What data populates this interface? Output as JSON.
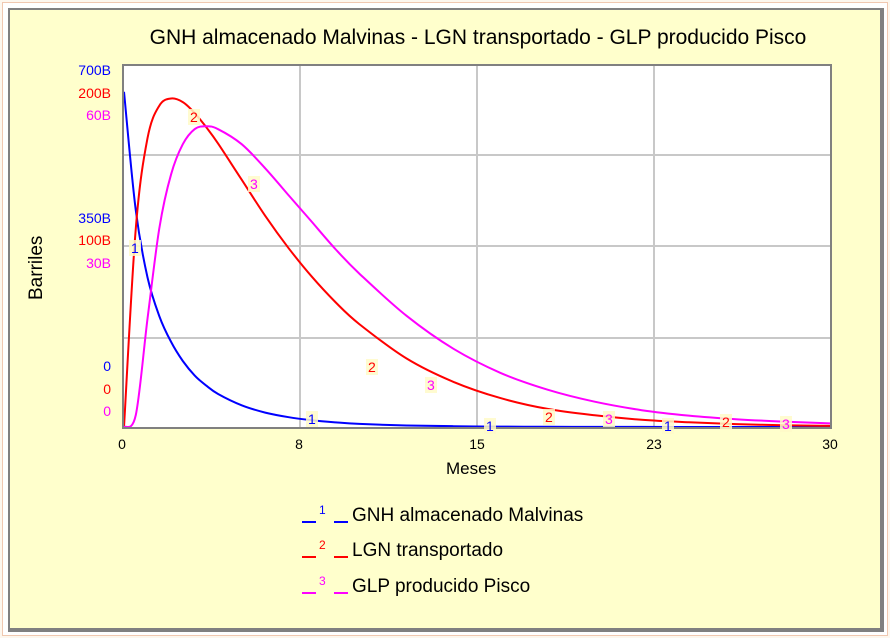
{
  "chart_data": {
    "type": "line",
    "title": "GNH almacenado Malvinas - LGN  transportado - GLP producido Pisco",
    "xlabel": "Meses",
    "ylabel": "Barriles",
    "xlim": [
      0,
      30
    ],
    "x_ticks": [
      "0",
      "8",
      "15",
      "23",
      "30"
    ],
    "grid": true,
    "legend_position": "bottom",
    "y_axes": [
      {
        "series": "GNH almacenado Malvinas",
        "color": "#0000ff",
        "ticks": [
          "0",
          "350B",
          "700B"
        ],
        "ylim": [
          0,
          700
        ]
      },
      {
        "series": "LGN  transportado",
        "color": "#ff0000",
        "ticks": [
          "0",
          "100B",
          "200B"
        ],
        "ylim": [
          0,
          200
        ]
      },
      {
        "series": "GLP  producido Pisco",
        "color": "#ff00ff",
        "ticks": [
          "0",
          "30B",
          "60B"
        ],
        "ylim": [
          0,
          60
        ]
      }
    ],
    "x": [
      0,
      0.5,
      1,
      1.5,
      2,
      2.5,
      3,
      3.5,
      4,
      5,
      6,
      7,
      8,
      9,
      10,
      12,
      14,
      16,
      18,
      20,
      22,
      24,
      26,
      28,
      30
    ],
    "series": [
      {
        "name": "GNH almacenado Malvinas",
        "marker": "1",
        "color": "#0000ff",
        "unit": "B barrels",
        "values": [
          650,
          420,
          290,
          215,
          165,
          128,
          100,
          80,
          64,
          42,
          28,
          19,
          13,
          9,
          6,
          3,
          1.5,
          0.8,
          0.4,
          0.2,
          0.1,
          0.05,
          0.02,
          0.01,
          0
        ]
      },
      {
        "name": "LGN  transportado",
        "marker": "2",
        "color": "#ff0000",
        "unit": "B barrels",
        "values": [
          0,
          110,
          160,
          178,
          182,
          180,
          174,
          166,
          157,
          137,
          117,
          99,
          83,
          69,
          57,
          38,
          25,
          16,
          10,
          6.5,
          4,
          2.6,
          1.6,
          1,
          0.6
        ]
      },
      {
        "name": "GLP  producido Pisco",
        "marker": "3",
        "color": "#ff00ff",
        "unit": "B barrels",
        "values": [
          0,
          2,
          18,
          33,
          42,
          47,
          49.5,
          50,
          49.5,
          47,
          43,
          38.5,
          34,
          29.5,
          25.5,
          18.5,
          13,
          9,
          6.2,
          4.2,
          2.8,
          1.9,
          1.3,
          0.9,
          0.6
        ]
      }
    ]
  },
  "title": "GNH almacenado Malvinas - LGN  transportado - GLP producido Pisco",
  "axes": {
    "ylabel": "Barriles",
    "xlabel": "Meses",
    "x_ticks": [
      "0",
      "8",
      "15",
      "23",
      "30"
    ],
    "y_top": {
      "blue": "700B",
      "red": "200B",
      "magenta": "60B"
    },
    "y_mid": {
      "blue": "350B",
      "red": "100B",
      "magenta": "30B"
    },
    "y_zero": {
      "blue": "0",
      "red": "0",
      "magenta": "0"
    }
  },
  "markers": {
    "s1": "1",
    "s2": "2",
    "s3": "3"
  },
  "legend": [
    {
      "num": "1",
      "label": "GNH  almacenado Malvinas",
      "color": "#0000ff"
    },
    {
      "num": "2",
      "label": "LGN  transportado",
      "color": "#ff0000"
    },
    {
      "num": "3",
      "label": "GLP  producido Pisco",
      "color": "#ff00ff"
    }
  ]
}
